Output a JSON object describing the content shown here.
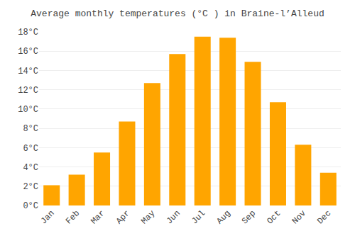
{
  "chart_data": {
    "type": "bar",
    "title": "Average monthly temperatures (°C ) in Braine-l’Alleud",
    "categories": [
      "Jan",
      "Feb",
      "Mar",
      "Apr",
      "May",
      "Jun",
      "Jul",
      "Aug",
      "Sep",
      "Oct",
      "Nov",
      "Dec"
    ],
    "values": [
      2.1,
      3.2,
      5.5,
      8.7,
      12.7,
      15.7,
      17.5,
      17.4,
      14.9,
      10.7,
      6.3,
      3.4
    ],
    "color": "#FFA500",
    "ylim": [
      0,
      18
    ],
    "yticks": [
      {
        "value": 0,
        "label": "0°C"
      },
      {
        "value": 2,
        "label": "2°C"
      },
      {
        "value": 4,
        "label": "4°C"
      },
      {
        "value": 6,
        "label": "6°C"
      },
      {
        "value": 8,
        "label": "8°C"
      },
      {
        "value": 10,
        "label": "10°C"
      },
      {
        "value": 12,
        "label": "12°C"
      },
      {
        "value": 14,
        "label": "14°C"
      },
      {
        "value": 16,
        "label": "16°C"
      },
      {
        "value": 18,
        "label": "18°C"
      }
    ],
    "grid": true
  }
}
